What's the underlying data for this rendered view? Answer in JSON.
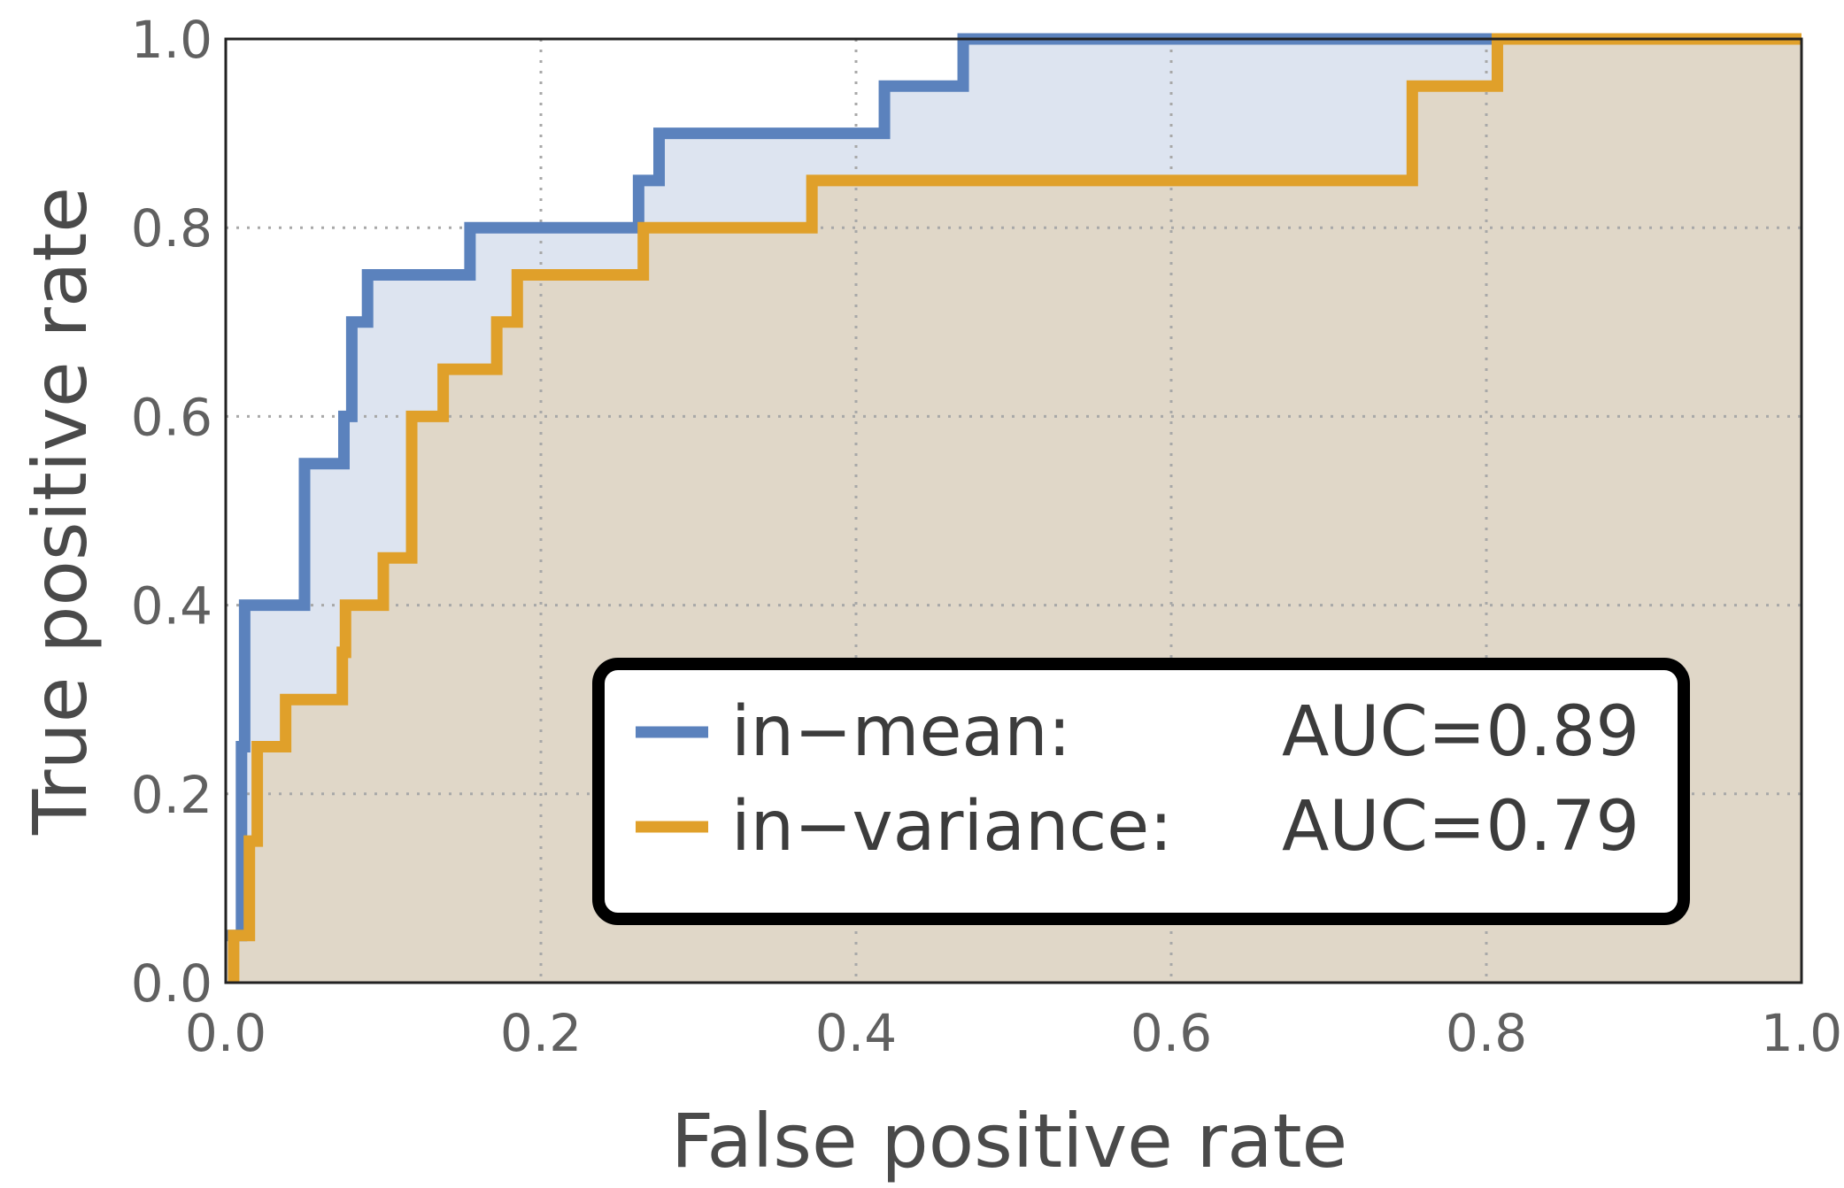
{
  "chart_data": {
    "type": "line",
    "xlabel": "False positive rate",
    "ylabel": "True positive rate",
    "xlim": [
      0,
      1
    ],
    "ylim": [
      0,
      1
    ],
    "xticks": [
      "0.0",
      "0.2",
      "0.4",
      "0.6",
      "0.8",
      "1.0"
    ],
    "yticks": [
      "0.0",
      "0.2",
      "0.4",
      "0.6",
      "0.8",
      "1.0"
    ],
    "grid": true,
    "legend_position": "bottom-right",
    "series": [
      {
        "name": "in−mean:",
        "auc_label": "AUC=0.89",
        "color": "#5b82bd",
        "fill": "#dde4f0",
        "points": [
          [
            0,
            0.05
          ],
          [
            0.01,
            0.05
          ],
          [
            0.01,
            0.25
          ],
          [
            0.012,
            0.25
          ],
          [
            0.012,
            0.4
          ],
          [
            0.05,
            0.4
          ],
          [
            0.05,
            0.55
          ],
          [
            0.075,
            0.55
          ],
          [
            0.075,
            0.6
          ],
          [
            0.08,
            0.6
          ],
          [
            0.08,
            0.7
          ],
          [
            0.09,
            0.7
          ],
          [
            0.09,
            0.75
          ],
          [
            0.155,
            0.75
          ],
          [
            0.155,
            0.8
          ],
          [
            0.262,
            0.8
          ],
          [
            0.262,
            0.85
          ],
          [
            0.275,
            0.85
          ],
          [
            0.275,
            0.9
          ],
          [
            0.418,
            0.9
          ],
          [
            0.418,
            0.95
          ],
          [
            0.468,
            0.95
          ],
          [
            0.468,
            1.0
          ],
          [
            1.0,
            1.0
          ]
        ]
      },
      {
        "name": "in−variance:",
        "auc_label": "AUC=0.79",
        "color": "#e0a02a",
        "fill": "#e0d7c8",
        "points": [
          [
            0.005,
            0
          ],
          [
            0.005,
            0.05
          ],
          [
            0.015,
            0.05
          ],
          [
            0.015,
            0.15
          ],
          [
            0.02,
            0.15
          ],
          [
            0.02,
            0.25
          ],
          [
            0.038,
            0.25
          ],
          [
            0.038,
            0.3
          ],
          [
            0.074,
            0.3
          ],
          [
            0.074,
            0.35
          ],
          [
            0.076,
            0.35
          ],
          [
            0.076,
            0.4
          ],
          [
            0.1,
            0.4
          ],
          [
            0.1,
            0.45
          ],
          [
            0.118,
            0.45
          ],
          [
            0.118,
            0.6
          ],
          [
            0.138,
            0.6
          ],
          [
            0.138,
            0.65
          ],
          [
            0.172,
            0.65
          ],
          [
            0.172,
            0.7
          ],
          [
            0.185,
            0.7
          ],
          [
            0.185,
            0.75
          ],
          [
            0.265,
            0.75
          ],
          [
            0.265,
            0.8
          ],
          [
            0.372,
            0.8
          ],
          [
            0.372,
            0.85
          ],
          [
            0.753,
            0.85
          ],
          [
            0.753,
            0.95
          ],
          [
            0.807,
            0.95
          ],
          [
            0.807,
            1.0
          ],
          [
            1.0,
            1.0
          ]
        ]
      }
    ]
  }
}
